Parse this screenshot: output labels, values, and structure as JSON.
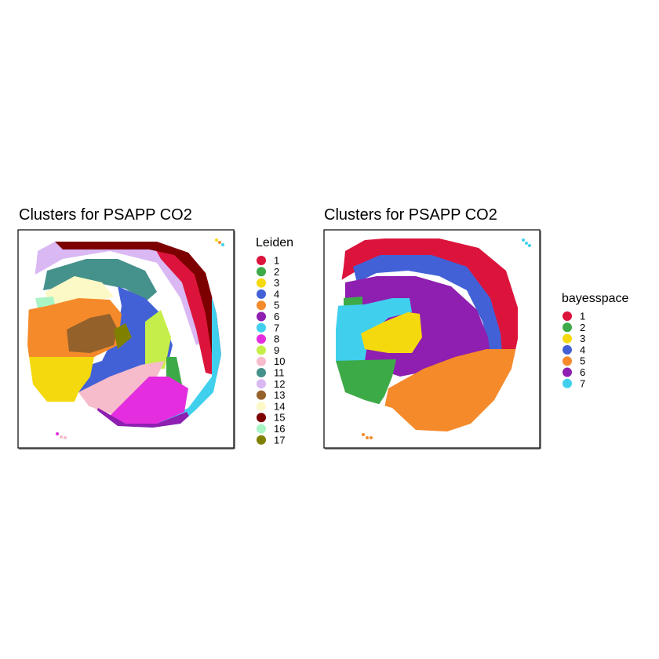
{
  "chart_data": [
    {
      "type": "scatter",
      "title": "Clusters for PSAPP CO2",
      "xlabel": "",
      "ylabel": "",
      "grid": false,
      "legend_position": "right",
      "legend": {
        "title": "Leiden",
        "entries": [
          {
            "label": "1",
            "color": "#DC143C"
          },
          {
            "label": "2",
            "color": "#3DAA48"
          },
          {
            "label": "3",
            "color": "#F5D90F"
          },
          {
            "label": "4",
            "color": "#4361D6"
          },
          {
            "label": "5",
            "color": "#F58A2B"
          },
          {
            "label": "6",
            "color": "#8E1FB0"
          },
          {
            "label": "7",
            "color": "#40D0EE"
          },
          {
            "label": "8",
            "color": "#E52DE0"
          },
          {
            "label": "9",
            "color": "#C6EE4B"
          },
          {
            "label": "10",
            "color": "#F6BCCB"
          },
          {
            "label": "11",
            "color": "#45918C"
          },
          {
            "label": "12",
            "color": "#D9B8F3"
          },
          {
            "label": "13",
            "color": "#94612A"
          },
          {
            "label": "14",
            "color": "#FDF9C6"
          },
          {
            "label": "15",
            "color": "#7D0000"
          },
          {
            "label": "16",
            "color": "#A9F4C4"
          },
          {
            "label": "17",
            "color": "#808000"
          }
        ]
      }
    },
    {
      "type": "scatter",
      "title": "Clusters for PSAPP CO2",
      "xlabel": "",
      "ylabel": "",
      "grid": false,
      "legend_position": "right",
      "legend": {
        "title": "bayesspace",
        "entries": [
          {
            "label": "1",
            "color": "#DC143C"
          },
          {
            "label": "2",
            "color": "#3DAA48"
          },
          {
            "label": "3",
            "color": "#F5D90F"
          },
          {
            "label": "4",
            "color": "#4361D6"
          },
          {
            "label": "5",
            "color": "#F58A2B"
          },
          {
            "label": "6",
            "color": "#8E1FB0"
          },
          {
            "label": "7",
            "color": "#40D0EE"
          }
        ]
      }
    }
  ]
}
